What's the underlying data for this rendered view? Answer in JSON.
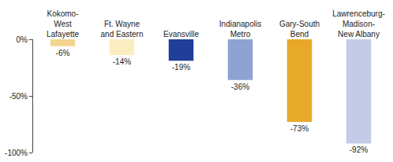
{
  "chart_data": {
    "type": "bar",
    "categories": [
      "Kokomo-\nWest\nLafayette",
      "Ft. Wayne\nand Eastern",
      "Evansville",
      "Indianapolis\nMetro",
      "Gary-South\nBend",
      "Lawrenceburg-\nMadison-\nNew Albany"
    ],
    "values": [
      -6,
      -14,
      -19,
      -36,
      -73,
      -92
    ],
    "value_labels": [
      "-6%",
      "-14%",
      "-19%",
      "-36%",
      "-73%",
      "-92%"
    ],
    "colors": [
      "#f3d590",
      "#fbedc0",
      "#1f3f99",
      "#8ea3d4",
      "#e8a82a",
      "#c3cbe6"
    ],
    "ylim": [
      -100,
      0
    ],
    "yticks": [
      {
        "value": 0,
        "label": "0%"
      },
      {
        "value": -50,
        "label": "-50%"
      },
      {
        "value": -100,
        "label": "-100%"
      }
    ],
    "grid": false,
    "data_labels": true
  }
}
